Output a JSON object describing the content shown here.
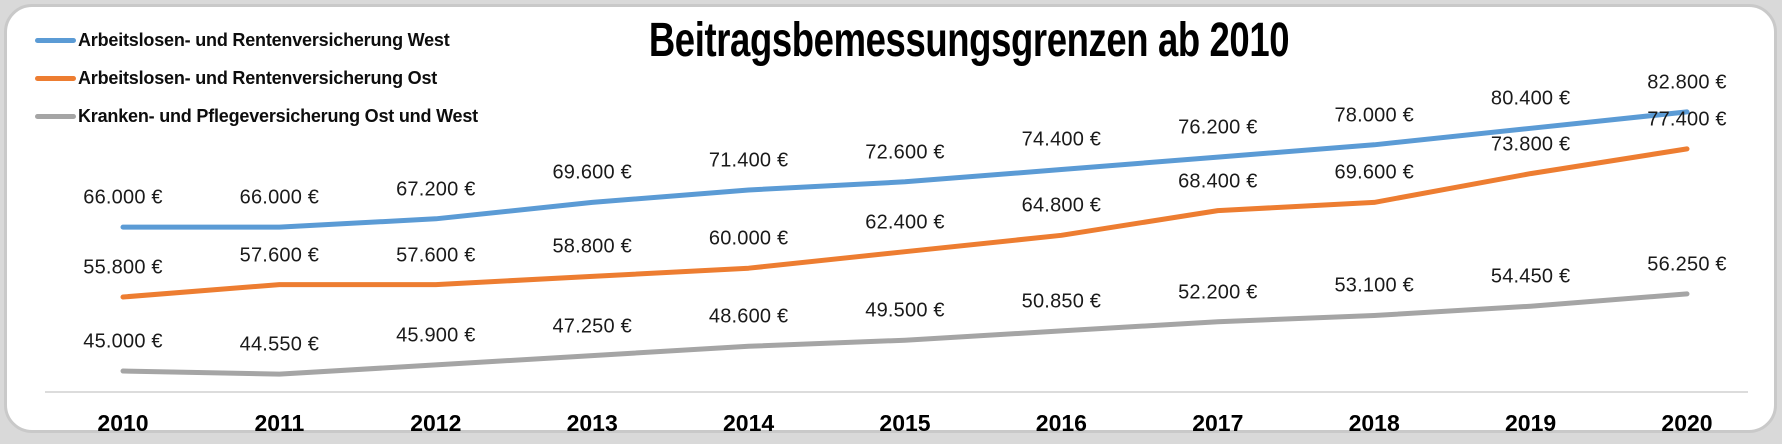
{
  "chart_data": {
    "type": "line",
    "title": "Beitragsbemessungsgrenzen ab 2010",
    "x": [
      "2010",
      "2011",
      "2012",
      "2013",
      "2014",
      "2015",
      "2016",
      "2017",
      "2018",
      "2019",
      "2020"
    ],
    "series": [
      {
        "name": "Arbeitslosen- und Rentenversicherung West",
        "color": "#5b9bd5",
        "values": [
          66000,
          66000,
          67200,
          69600,
          71400,
          72600,
          74400,
          76200,
          78000,
          80400,
          82800
        ]
      },
      {
        "name": "Arbeitslosen- und Rentenversicherung Ost",
        "color": "#ed7d31",
        "values": [
          55800,
          57600,
          57600,
          58800,
          60000,
          62400,
          64800,
          68400,
          69600,
          73800,
          77400
        ]
      },
      {
        "name": "Kranken- und Pflegeversicherung Ost und West",
        "color": "#a5a5a5",
        "values": [
          45000,
          44550,
          45900,
          47250,
          48600,
          49500,
          50850,
          52200,
          53100,
          54450,
          56250
        ]
      }
    ],
    "value_suffix": "€",
    "number_format": "de-thousands-dot",
    "data_labels": true,
    "grid": false,
    "legend_position": "top-left",
    "ylim": [
      40000,
      85000
    ],
    "y_axis_visible": false,
    "x_axis_visible": true
  },
  "ui": {
    "outer_background": "#d9d9d9",
    "panel_background": "#ffffff",
    "panel_border": "#c9c9c9",
    "axis_line_color": "#dcdcdc",
    "label_color": "#1a1a1a"
  }
}
